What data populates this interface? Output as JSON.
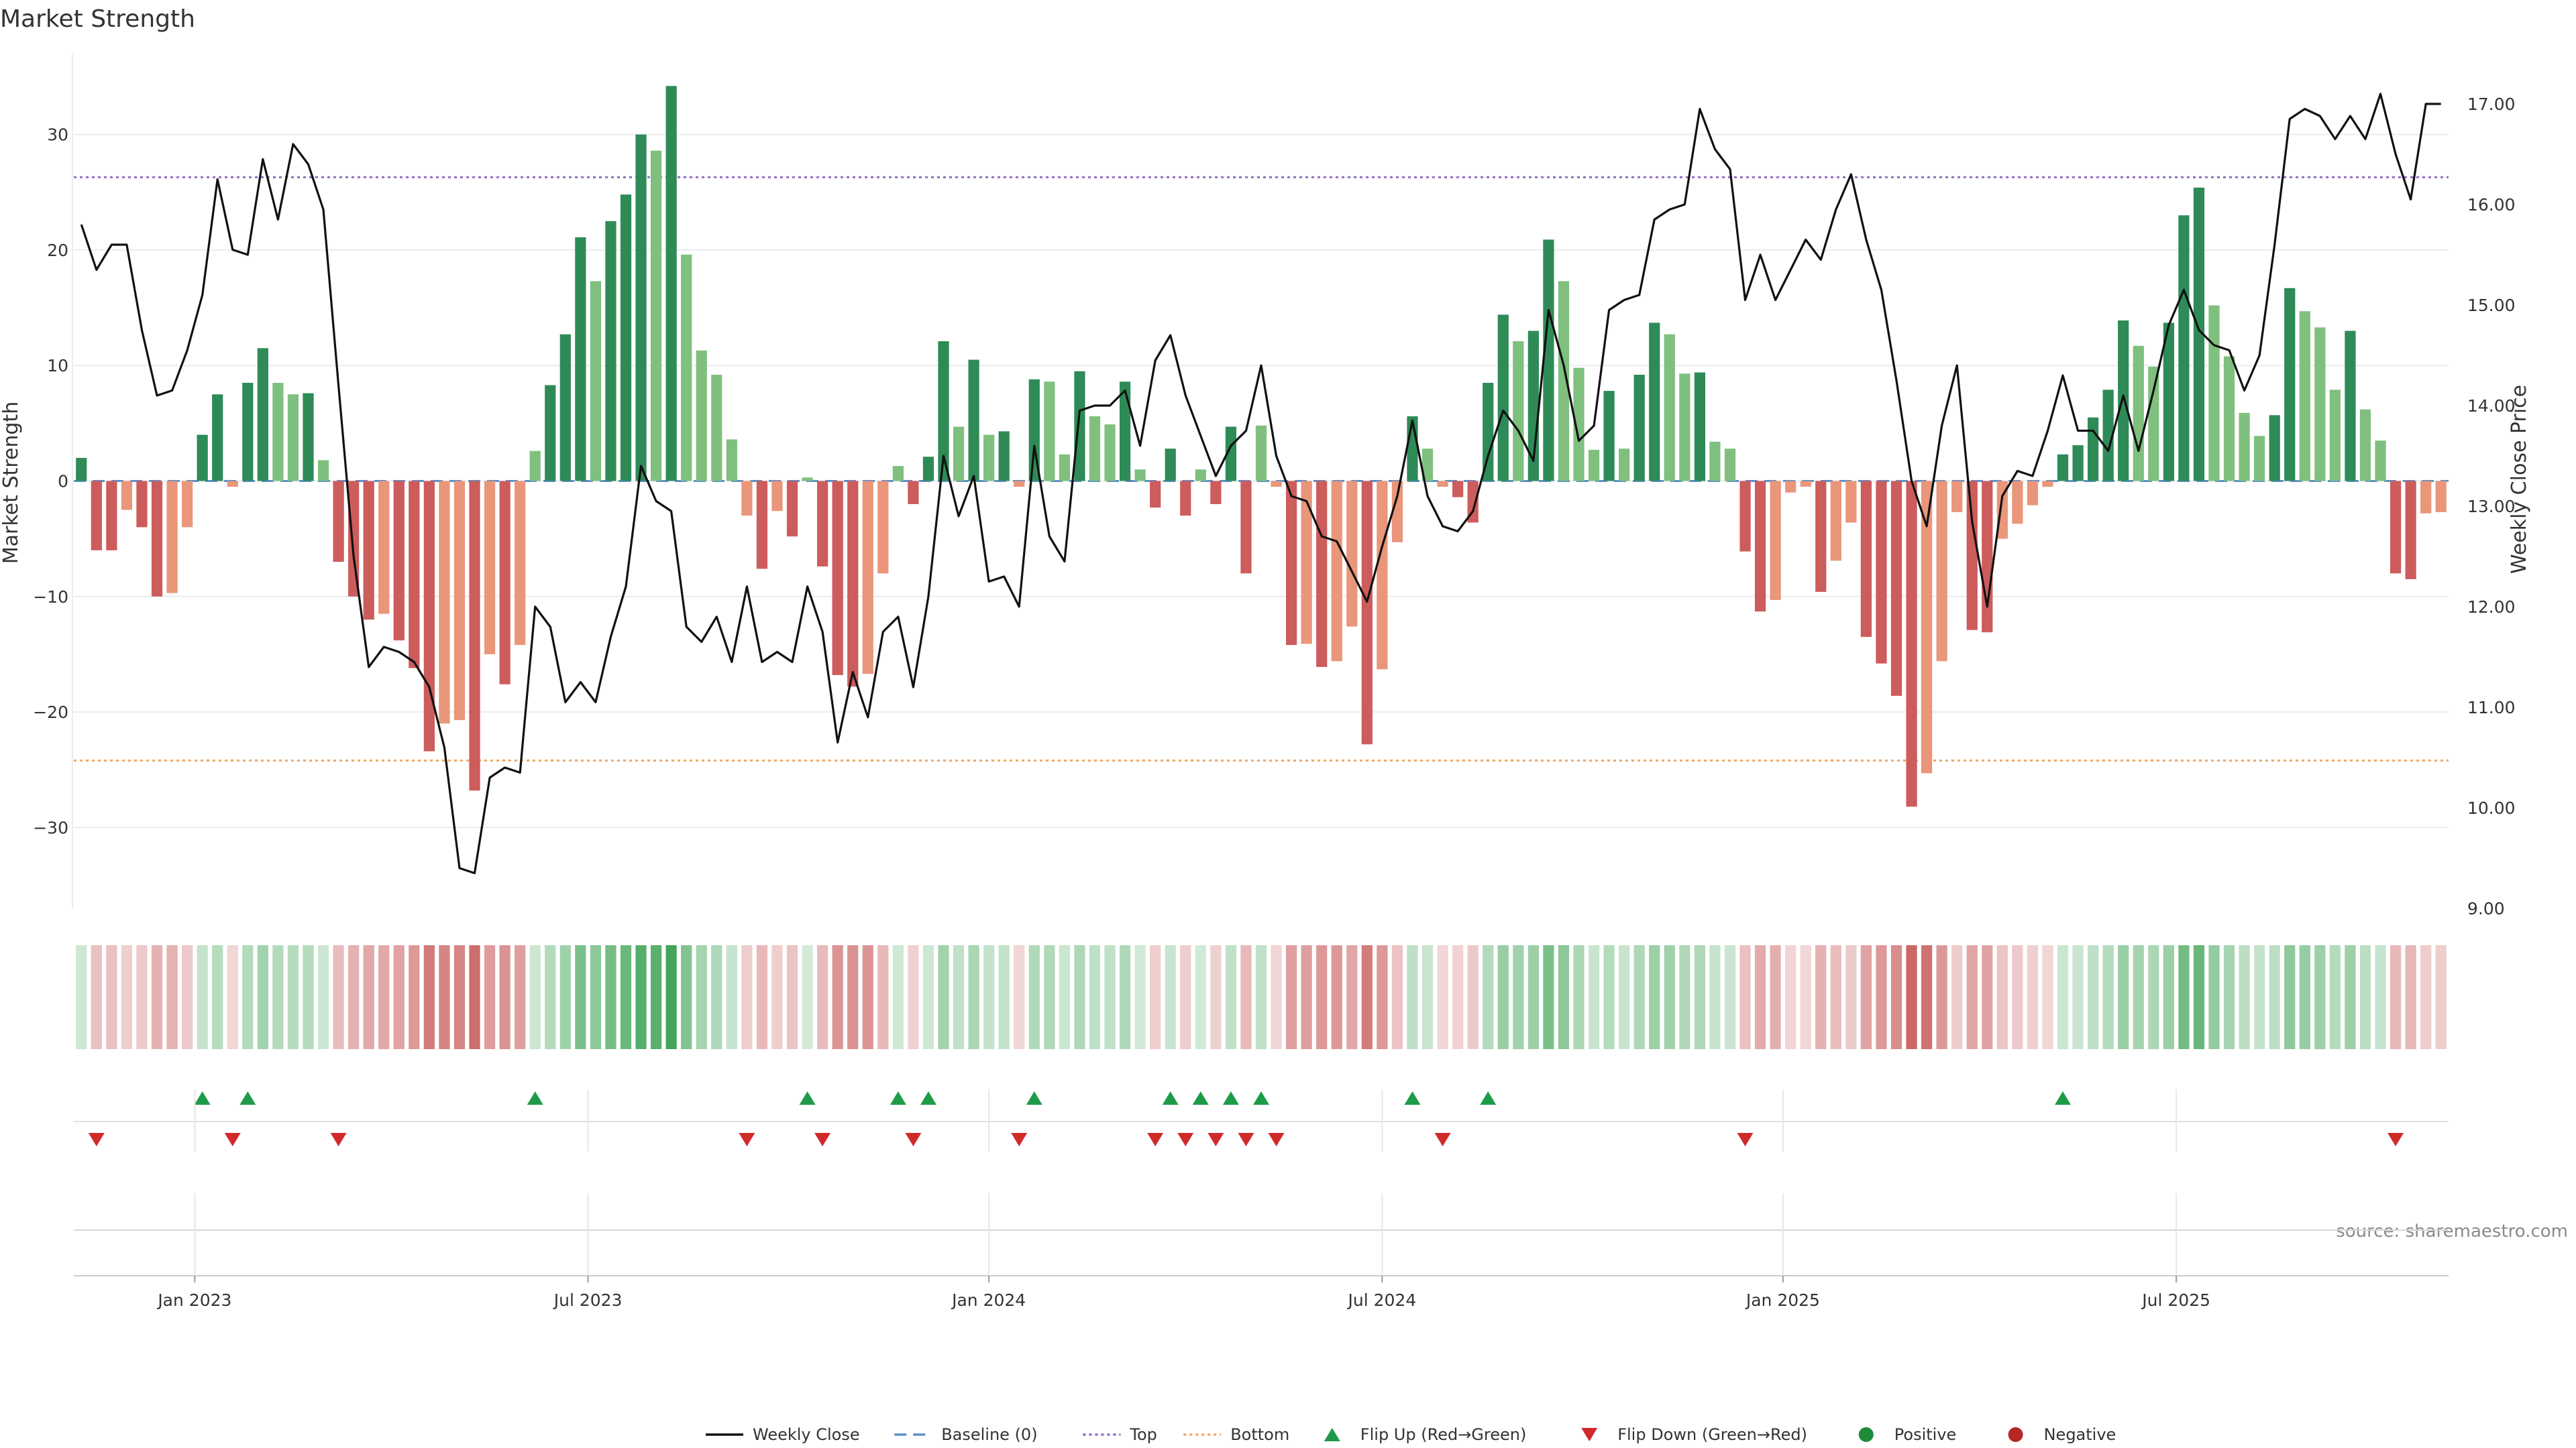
{
  "chart_data": {
    "type": "bar+line",
    "title": "Market Strength",
    "ylabel_left": "Market Strength",
    "ylabel_right": "Weekly Close Price",
    "source": "source: sharemaestro.com",
    "y_left_ticks": [
      -30,
      -20,
      -10,
      0,
      10,
      20,
      30
    ],
    "y_left_range": [
      -37,
      37
    ],
    "y_right_ticks": [
      "9.00",
      "10.00",
      "11.00",
      "12.00",
      "13.00",
      "14.00",
      "15.00",
      "16.00",
      "17.00"
    ],
    "y_right_range": [
      9.0,
      17.5
    ],
    "x_ticks": [
      {
        "label": "Jan 2023",
        "week": 8
      },
      {
        "label": "Jul 2023",
        "week": 34
      },
      {
        "label": "Jan 2024",
        "week": 60.5
      },
      {
        "label": "Jul 2024",
        "week": 86.5
      },
      {
        "label": "Jan 2025",
        "week": 113
      },
      {
        "label": "Jul 2025",
        "week": 139
      }
    ],
    "reference_lines": {
      "baseline": 0,
      "top": 26.3,
      "bottom": -24.2
    },
    "strength": [
      2,
      -6,
      -6,
      -2.5,
      -4,
      -10,
      -9.7,
      -4,
      4,
      7.5,
      -0.5,
      8.5,
      11.5,
      8.5,
      7.5,
      7.6,
      1.8,
      -7,
      -10,
      -12,
      -11.5,
      -13.8,
      -16.2,
      -23.4,
      -21,
      -20.7,
      -26.8,
      -15,
      -17.6,
      -14.2,
      2.6,
      8.3,
      12.7,
      21.1,
      17.3,
      22.5,
      24.8,
      30,
      28.6,
      34.2,
      19.6,
      11.3,
      9.2,
      3.6,
      -3,
      -7.6,
      -2.6,
      -4.8,
      0.3,
      -7.4,
      -16.8,
      -17.8,
      -16.7,
      -8,
      1.3,
      -2,
      2.1,
      12.1,
      4.7,
      10.5,
      4,
      4.3,
      -0.5,
      8.8,
      8.6,
      2.3,
      9.5,
      5.6,
      4.9,
      8.6,
      1,
      -2.3,
      2.8,
      -3,
      1,
      -2,
      4.7,
      -8,
      4.8,
      -0.5,
      -14.2,
      -14.1,
      -16.1,
      -15.6,
      -12.6,
      -22.8,
      -16.3,
      -5.3,
      5.6,
      2.8,
      -0.5,
      -1.4,
      -3.6,
      8.5,
      14.4,
      12.1,
      13,
      20.9,
      17.3,
      9.8,
      2.7,
      7.8,
      2.8,
      9.2,
      13.7,
      12.7,
      9.3,
      9.4,
      3.4,
      2.8,
      -6.1,
      -11.3,
      -10.3,
      -1,
      -0.5,
      -9.6,
      -6.9,
      -3.6,
      -13.5,
      -15.8,
      -18.6,
      -28.2,
      -25.3,
      -15.6,
      -2.7,
      -12.9,
      -13.1,
      -5,
      -3.7,
      -2.1,
      -0.5,
      2.3,
      3.1,
      5.5,
      7.9,
      13.9,
      11.7,
      9.9,
      13.7,
      23,
      25.4,
      15.2,
      10.8,
      5.9,
      3.9,
      5.7,
      16.7,
      14.7,
      13.3,
      7.9,
      13,
      6.2,
      3.5,
      -8,
      -8.5,
      -2.8,
      -2.7
    ],
    "weekly_close": [
      15.8,
      15.35,
      15.6,
      15.6,
      14.75,
      14.1,
      14.15,
      14.55,
      15.1,
      16.25,
      15.55,
      15.5,
      16.45,
      15.85,
      16.6,
      16.4,
      15.95,
      14.2,
      12.5,
      11.4,
      11.6,
      11.55,
      11.45,
      11.2,
      10.6,
      9.4,
      9.35,
      10.3,
      10.4,
      10.35,
      12,
      11.8,
      11.05,
      11.25,
      11.05,
      11.7,
      12.2,
      13.4,
      13.05,
      12.95,
      11.8,
      11.65,
      11.9,
      11.45,
      12.2,
      11.45,
      11.55,
      11.45,
      12.2,
      11.75,
      10.65,
      11.35,
      10.9,
      11.75,
      11.9,
      11.2,
      12.1,
      13.5,
      12.9,
      13.3,
      12.25,
      12.3,
      12,
      13.6,
      12.7,
      12.45,
      13.95,
      14,
      14,
      14.15,
      13.6,
      14.45,
      14.7,
      14.1,
      13.7,
      13.3,
      13.6,
      13.75,
      14.4,
      13.5,
      13.1,
      13.05,
      12.7,
      12.65,
      12.35,
      12.05,
      12.6,
      13.1,
      13.85,
      13.1,
      12.8,
      12.75,
      12.95,
      13.5,
      13.95,
      13.75,
      13.45,
      14.95,
      14.4,
      13.65,
      13.8,
      14.95,
      15.05,
      15.1,
      15.85,
      15.95,
      16,
      16.95,
      16.55,
      16.35,
      15.05,
      15.5,
      15.05,
      15.35,
      15.65,
      15.45,
      15.95,
      16.3,
      15.65,
      15.15,
      14.25,
      13.25,
      12.8,
      13.8,
      14.4,
      12.85,
      12,
      13.1,
      13.35,
      13.3,
      13.75,
      14.3,
      13.75,
      13.75,
      13.55,
      14.1,
      13.55,
      14.15,
      14.8,
      15.15,
      14.75,
      14.6,
      14.55,
      14.15,
      14.5,
      15.6,
      16.85,
      16.95,
      16.88,
      16.65,
      16.88,
      16.65,
      17.1,
      16.5,
      16.05,
      17,
      17
    ]
  },
  "legend": [
    {
      "label": "Weekly Close",
      "icon": "line-icon",
      "color": "#111111"
    },
    {
      "label": "Baseline (0)",
      "icon": "dashed-line-icon",
      "color": "#5b8fc9"
    },
    {
      "label": "Top",
      "icon": "dotted-line-icon",
      "color": "#8e6fc4"
    },
    {
      "label": "Bottom",
      "icon": "dotted-line-icon",
      "color": "#f0a868"
    },
    {
      "label": "Flip Up (Red→Green)",
      "icon": "triangle-up-icon",
      "color": "#1e9b48"
    },
    {
      "label": "Flip Down (Green→Red)",
      "icon": "triangle-down-icon",
      "color": "#d02a2a"
    },
    {
      "label": "Positive",
      "icon": "dot-icon",
      "color": "#1e8a3a"
    },
    {
      "label": "Negative",
      "icon": "dot-icon",
      "color": "#b52626"
    }
  ],
  "colors": {
    "strong_green": "#2e8b57",
    "light_green": "#7fc07f",
    "strong_red": "#cd5c5c",
    "light_red": "#e9967a",
    "grid": "#ececec",
    "axis": "#cccccc"
  }
}
